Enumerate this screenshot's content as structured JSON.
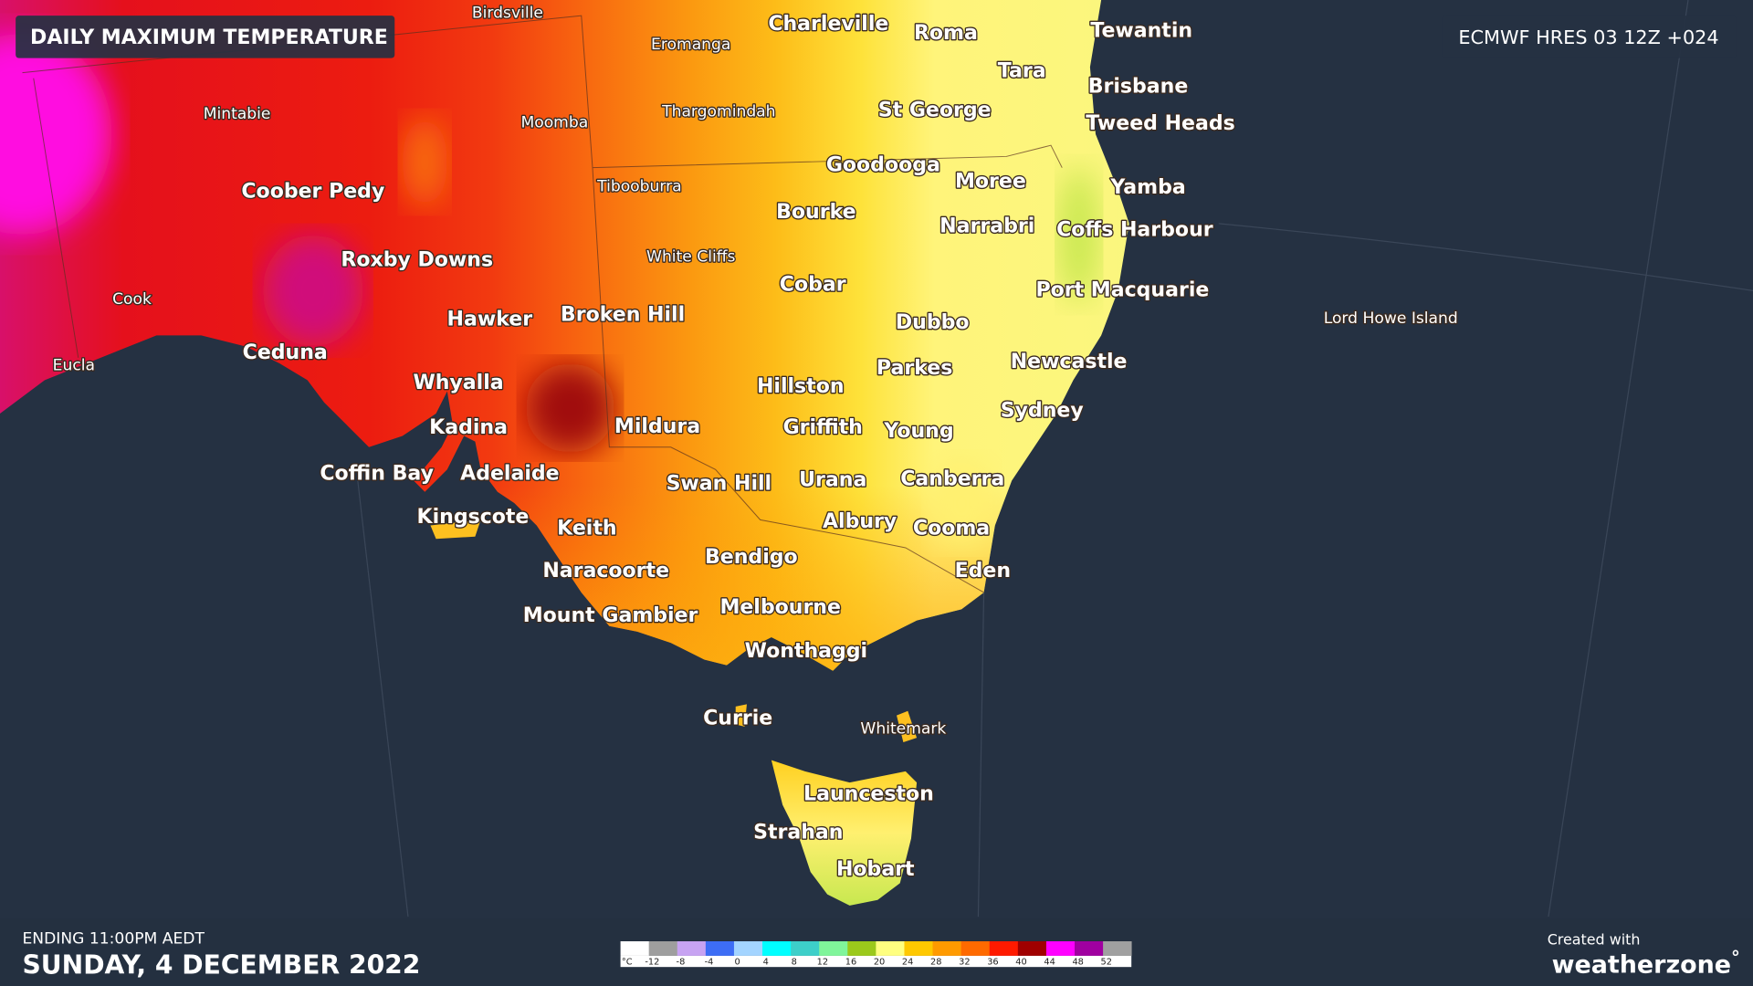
{
  "header": {
    "title": "DAILY MAXIMUM TEMPERATURE",
    "model": "ECMWF HRES 03 12Z +024"
  },
  "map": {
    "places": [
      "Birdsville",
      "Eromanga",
      "Charleville",
      "Roma",
      "Tewantin",
      "Tara",
      "Brisbane",
      "Mintabie",
      "Moomba",
      "Thargomindah",
      "St George",
      "Tweed Heads",
      "Goodooga",
      "Moree",
      "Yamba",
      "Tibooburra",
      "Coober Pedy",
      "Bourke",
      "Narrabri",
      "Coffs Harbour",
      "White Cliffs",
      "Roxby Downs",
      "Cobar",
      "Port Macquarie",
      "Cook",
      "Lord Howe Island",
      "Hawker",
      "Broken Hill",
      "Dubbo",
      "Ceduna",
      "Eucla",
      "Newcastle",
      "Parkes",
      "Whyalla",
      "Hillston",
      "Sydney",
      "Kadina",
      "Mildura",
      "Griffith",
      "Young",
      "Coffin Bay",
      "Adelaide",
      "Swan Hill",
      "Urana",
      "Canberra",
      "Kingscote",
      "Keith",
      "Albury",
      "Cooma",
      "Bendigo",
      "Naracoorte",
      "Eden",
      "Mount Gambier",
      "Melbourne",
      "Wonthaggi",
      "Currie",
      "Whitemark",
      "Launceston",
      "Strahan",
      "Hobart"
    ]
  },
  "legend": {
    "unit": "°C",
    "ticks": [
      -12,
      -8,
      -4,
      0,
      4,
      8,
      12,
      16,
      20,
      24,
      28,
      32,
      36,
      40,
      44,
      48,
      52
    ],
    "colors": [
      "#ffffff",
      "#9e9e9e",
      "#c7a3f2",
      "#3d6df5",
      "#a3d4ff",
      "#00ffff",
      "#3dcfc9",
      "#80f59a",
      "#9bc91b",
      "#ffff80",
      "#ffc800",
      "#ff9a00",
      "#ff6a00",
      "#ff1a00",
      "#a00000",
      "#ff00ff",
      "#a000a0",
      "#a0a0a0"
    ]
  },
  "footer": {
    "ending": "ENDING 11:00PM AEDT",
    "date": "SUNDAY, 4 DECEMBER 2022",
    "credit": "Created with",
    "brand": "weatherzone",
    "brand_mark": "°"
  }
}
